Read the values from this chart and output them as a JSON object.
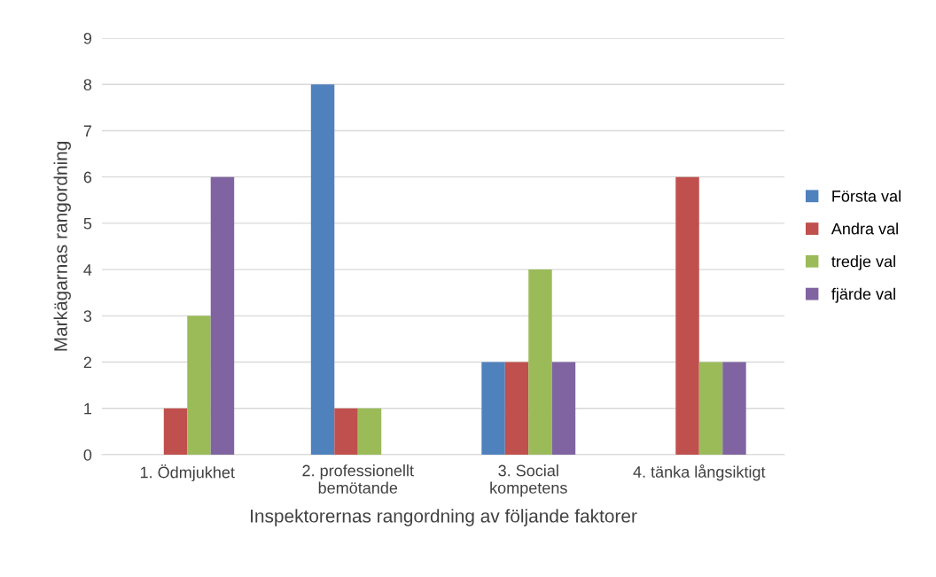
{
  "chart_data": {
    "type": "bar",
    "xlabel": "Inspektorernas rangordning av följande faktorer",
    "ylabel": "Markägarnas rangordning",
    "categories": [
      "1. Ödmjukhet",
      "2. professionellt\nbemötande",
      "3. Social\nkompetens",
      "4. tänka långsiktigt"
    ],
    "series": [
      {
        "name": "Första val",
        "color": "#4f81bd",
        "values": [
          0,
          8,
          2,
          0
        ]
      },
      {
        "name": "Andra val",
        "color": "#c0504d",
        "values": [
          1,
          1,
          2,
          6
        ]
      },
      {
        "name": "tredje val",
        "color": "#9bbb59",
        "values": [
          3,
          1,
          4,
          2
        ]
      },
      {
        "name": "fjärde val",
        "color": "#8064a2",
        "values": [
          6,
          0,
          2,
          2
        ]
      }
    ],
    "ylim": [
      0,
      9
    ],
    "yticks": [
      0,
      1,
      2,
      3,
      4,
      5,
      6,
      7,
      8,
      9
    ],
    "grid": "y",
    "legend": "right"
  }
}
